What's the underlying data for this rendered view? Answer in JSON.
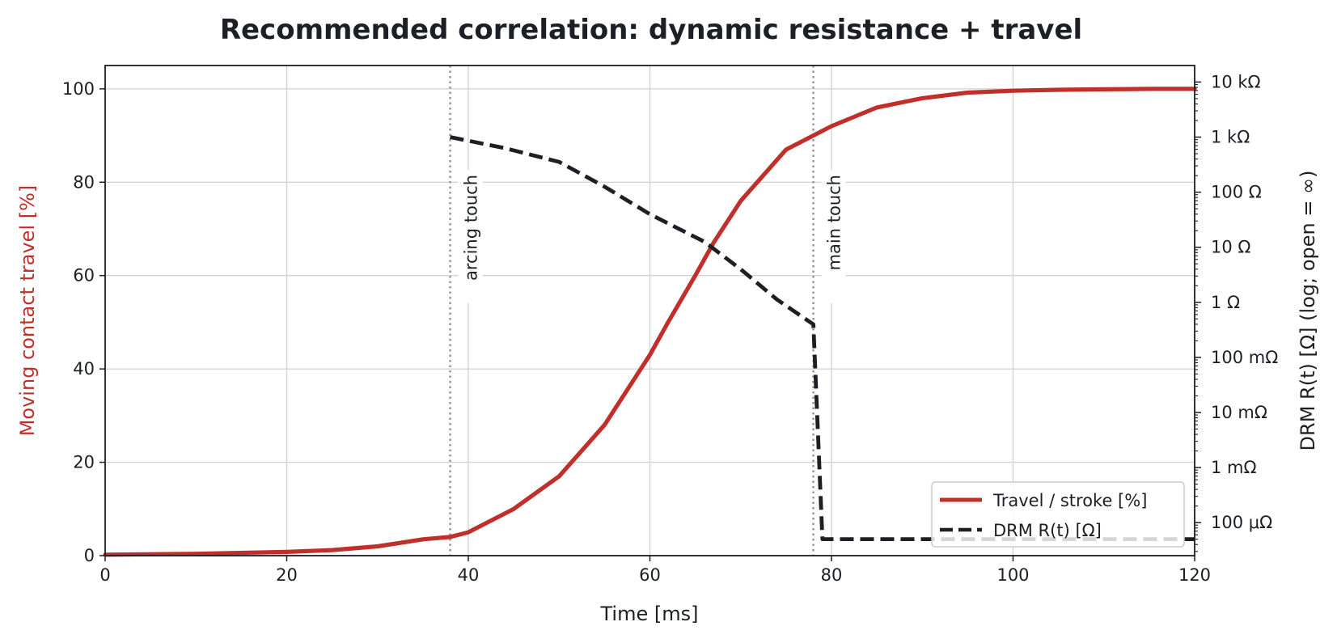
{
  "chart_data": {
    "type": "line",
    "title": "Recommended correlation: dynamic resistance + travel",
    "xlabel": "Time [ms]",
    "ylabel_left": "Moving contact travel [%]",
    "ylabel_right": "DRM R(t) [Ω] (log; open = ∞)",
    "xlim": [
      0,
      120
    ],
    "ylim_left": [
      0,
      105
    ],
    "ylim_right_log10": [
      -4.6,
      4.3
    ],
    "x_ticks": [
      0,
      20,
      40,
      60,
      80,
      100,
      120
    ],
    "x_tick_labels": [
      "0",
      "20",
      "40",
      "60",
      "80",
      "100",
      "120"
    ],
    "y_left_ticks": [
      0,
      20,
      40,
      60,
      80,
      100
    ],
    "y_left_tick_labels": [
      "0",
      "20",
      "40",
      "60",
      "80",
      "100"
    ],
    "y_right_ticks_log10": [
      -4,
      -3,
      -2,
      -1,
      0,
      1,
      2,
      3,
      4
    ],
    "y_right_tick_labels": [
      "100 μΩ",
      "1 mΩ",
      "10 mΩ",
      "100 mΩ",
      "1 Ω",
      "10 Ω",
      "100 Ω",
      "1 kΩ",
      "10 kΩ"
    ],
    "grid": true,
    "legend_position": "lower-right",
    "series": [
      {
        "name": "Travel / stroke [%]",
        "axis": "left",
        "color": "#c0302a",
        "style": "solid",
        "x": [
          0,
          10,
          20,
          25,
          30,
          35,
          38,
          40,
          45,
          50,
          55,
          60,
          62,
          65,
          67,
          70,
          75,
          78,
          80,
          85,
          90,
          95,
          100,
          105,
          110,
          115,
          120
        ],
        "y": [
          0.2,
          0.4,
          0.8,
          1.2,
          2.0,
          3.5,
          4.0,
          5.0,
          10.0,
          17.0,
          28.0,
          43.0,
          50.0,
          60.0,
          67.0,
          76.0,
          87.0,
          90.0,
          92.0,
          96.0,
          98.0,
          99.2,
          99.6,
          99.8,
          99.9,
          100,
          100
        ]
      },
      {
        "name": "DRM R(t) [Ω]",
        "axis": "right",
        "color": "#1c1f24",
        "style": "dashed",
        "x": [
          38,
          44,
          50,
          55,
          60,
          66,
          70,
          74,
          78,
          79,
          80,
          90,
          100,
          110,
          120
        ],
        "y_log10": [
          3.0,
          2.8,
          2.55,
          2.1,
          1.6,
          1.1,
          0.6,
          0.05,
          -0.4,
          -4.3,
          -4.3,
          -4.3,
          -4.3,
          -4.3,
          -4.3
        ]
      }
    ],
    "annotations": [
      {
        "x": 38,
        "label": "arcing touch"
      },
      {
        "x": 78,
        "label": "main touch"
      }
    ]
  }
}
